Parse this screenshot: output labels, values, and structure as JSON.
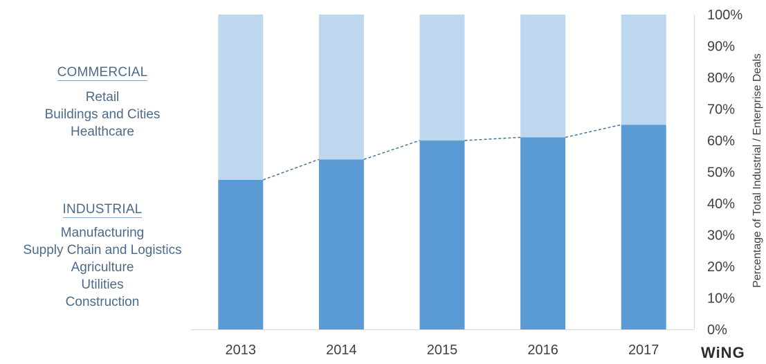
{
  "chart_data": {
    "type": "bar",
    "stacked": true,
    "categories": [
      "2013",
      "2014",
      "2015",
      "2016",
      "2017"
    ],
    "series": [
      {
        "name": "INDUSTRIAL",
        "values": [
          47.5,
          54,
          60,
          61,
          65
        ],
        "color": "#5b9bd5"
      },
      {
        "name": "COMMERCIAL",
        "values": [
          52.5,
          46,
          40,
          39,
          35
        ],
        "color": "#bdd7ee"
      }
    ],
    "trendline": {
      "style": "dashed",
      "color": "#44719c",
      "values": [
        47.5,
        54,
        60,
        61,
        65
      ]
    },
    "ylabel": "Percentage of Total Industrial / Enterprise Deals",
    "ylim": [
      0,
      100
    ],
    "yticks": [
      "0%",
      "10%",
      "20%",
      "30%",
      "40%",
      "50%",
      "60%",
      "70%",
      "80%",
      "90%",
      "100%"
    ],
    "y_axis_side": "right",
    "grid": false
  },
  "legend_text": {
    "commercial": {
      "heading": "COMMERCIAL",
      "items": [
        "Retail",
        "Buildings and Cities",
        "Healthcare"
      ]
    },
    "industrial": {
      "heading": "INDUSTRIAL",
      "items": [
        "Manufacturing",
        "Supply Chain and Logistics",
        "Agriculture",
        "Utilities",
        "Construction"
      ]
    }
  },
  "logo_text": "WiNG",
  "colors": {
    "text": "#4c6a8a",
    "axis_text": "#404040",
    "axis_line": "#d9d9d9"
  }
}
